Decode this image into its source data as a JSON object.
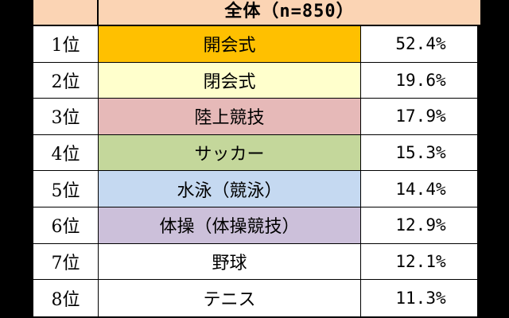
{
  "header": {
    "title": "全体（n=850）"
  },
  "rows": [
    {
      "rank": "1位",
      "name": "開会式",
      "pct": "52.4%",
      "color": "#ffc000"
    },
    {
      "rank": "2位",
      "name": "閉会式",
      "pct": "19.6%",
      "color": "#ffffcc"
    },
    {
      "rank": "3位",
      "name": "陸上競技",
      "pct": "17.9%",
      "color": "#e6b9b8"
    },
    {
      "rank": "4位",
      "name": "サッカー",
      "pct": "15.3%",
      "color": "#c4d79b"
    },
    {
      "rank": "5位",
      "name": "水泳（競泳）",
      "pct": "14.4%",
      "color": "#c5d9f1"
    },
    {
      "rank": "6位",
      "name": "体操（体操競技）",
      "pct": "12.9%",
      "color": "#ccc0da"
    },
    {
      "rank": "7位",
      "name": "野球",
      "pct": "12.1%",
      "color": "#ffffff"
    },
    {
      "rank": "8位",
      "name": "テニス",
      "pct": "11.3%",
      "color": "#ffffff"
    }
  ]
}
